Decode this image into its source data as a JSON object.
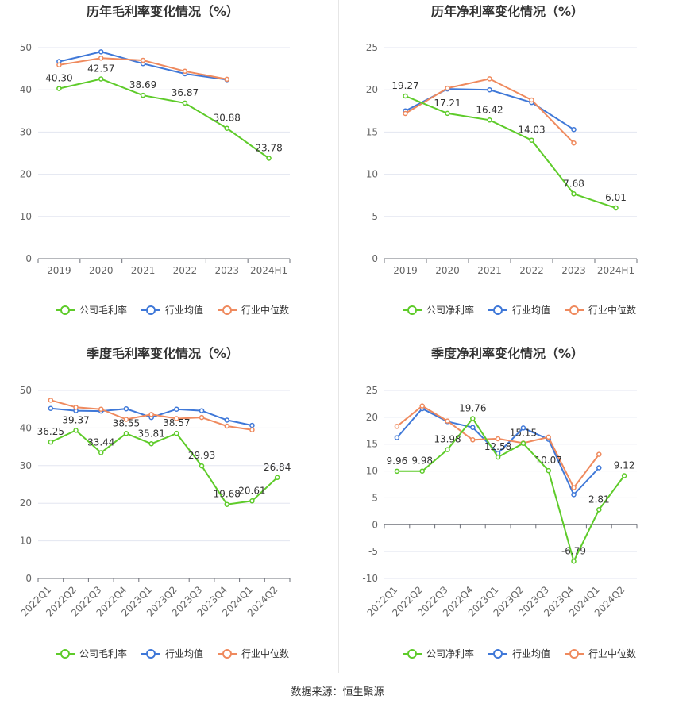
{
  "colors": {
    "company": "#5ecb2a",
    "industry_avg": "#3f78d8",
    "industry_median": "#ef8a5e",
    "axis_text": "#666666",
    "title": "#333333",
    "grid": "#e3e6f0"
  },
  "source": "数据来源：恒生聚源",
  "chart_data": [
    {
      "type": "line",
      "title": "历年毛利率变化情况（%）",
      "categories": [
        "2019",
        "2020",
        "2021",
        "2022",
        "2023",
        "2024H1"
      ],
      "ylim": [
        0,
        50
      ],
      "yticks": [
        0,
        10,
        20,
        30,
        40,
        50
      ],
      "tick_labels_rotated": false,
      "legend_position": "bottom",
      "series": [
        {
          "name": "公司毛利率",
          "key": "company",
          "labeled": true,
          "values": [
            40.3,
            42.57,
            38.69,
            36.87,
            30.88,
            23.78
          ],
          "labels": [
            "40.30",
            "42.57",
            "38.69",
            "36.87",
            "30.88",
            "23.78"
          ]
        },
        {
          "name": "行业均值",
          "key": "industry_avg",
          "labeled": false,
          "values": [
            46.7,
            49.0,
            46.2,
            43.8,
            42.4,
            null
          ]
        },
        {
          "name": "行业中位数",
          "key": "industry_median",
          "labeled": false,
          "values": [
            45.9,
            47.5,
            47.0,
            44.4,
            42.5,
            null
          ]
        }
      ]
    },
    {
      "type": "line",
      "title": "历年净利率变化情况（%）",
      "categories": [
        "2019",
        "2020",
        "2021",
        "2022",
        "2023",
        "2024H1"
      ],
      "ylim": [
        0,
        25
      ],
      "yticks": [
        0,
        5,
        10,
        15,
        20,
        25
      ],
      "tick_labels_rotated": false,
      "legend_position": "bottom",
      "series": [
        {
          "name": "公司净利率",
          "key": "company",
          "labeled": true,
          "values": [
            19.27,
            17.21,
            16.42,
            14.03,
            7.68,
            6.01
          ],
          "labels": [
            "19.27",
            "17.21",
            "16.42",
            "14.03",
            "7.68",
            "6.01"
          ]
        },
        {
          "name": "行业均值",
          "key": "industry_avg",
          "labeled": false,
          "values": [
            17.5,
            20.1,
            20.0,
            18.5,
            15.3,
            null
          ]
        },
        {
          "name": "行业中位数",
          "key": "industry_median",
          "labeled": false,
          "values": [
            17.2,
            20.2,
            21.3,
            18.8,
            13.7,
            null
          ]
        }
      ]
    },
    {
      "type": "line",
      "title": "季度毛利率变化情况（%）",
      "categories": [
        "2022Q1",
        "2022Q2",
        "2022Q3",
        "2022Q4",
        "2023Q1",
        "2023Q2",
        "2023Q3",
        "2023Q4",
        "2024Q1",
        "2024Q2"
      ],
      "ylim": [
        0,
        50
      ],
      "yticks": [
        0,
        10,
        20,
        30,
        40,
        50
      ],
      "tick_labels_rotated": true,
      "legend_position": "bottom",
      "series": [
        {
          "name": "公司毛利率",
          "key": "company",
          "labeled": true,
          "values": [
            36.25,
            39.37,
            33.44,
            38.55,
            35.81,
            38.57,
            29.93,
            19.68,
            20.61,
            26.84
          ],
          "labels": [
            "36.25",
            "39.37",
            "33.44",
            "38.55",
            "35.81",
            "38.57",
            "29.93",
            "19.68",
            "20.61",
            "26.84"
          ]
        },
        {
          "name": "行业均值",
          "key": "industry_avg",
          "labeled": false,
          "values": [
            45.2,
            44.6,
            44.5,
            45.1,
            42.8,
            45.0,
            44.6,
            42.1,
            40.7,
            null
          ]
        },
        {
          "name": "行业中位数",
          "key": "industry_median",
          "labeled": false,
          "values": [
            47.4,
            45.5,
            45.0,
            42.3,
            43.6,
            42.5,
            42.8,
            40.5,
            39.5,
            null
          ]
        }
      ]
    },
    {
      "type": "line",
      "title": "季度净利率变化情况（%）",
      "categories": [
        "2022Q1",
        "2022Q2",
        "2022Q3",
        "2022Q4",
        "2023Q1",
        "2023Q2",
        "2023Q3",
        "2023Q4",
        "2024Q1",
        "2024Q2"
      ],
      "ylim": [
        -10,
        25
      ],
      "yticks": [
        -10,
        -5,
        0,
        5,
        10,
        15,
        20,
        25
      ],
      "tick_labels_rotated": true,
      "legend_position": "bottom",
      "series": [
        {
          "name": "公司净利率",
          "key": "company",
          "labeled": true,
          "values": [
            9.96,
            9.98,
            13.98,
            19.76,
            12.58,
            15.15,
            10.07,
            -6.79,
            2.81,
            9.12
          ],
          "labels": [
            "9.96",
            "9.98",
            "13.98",
            "19.76",
            "12.58",
            "15.15",
            "10.07",
            "-6.79",
            "2.81",
            "9.12"
          ]
        },
        {
          "name": "行业均值",
          "key": "industry_avg",
          "labeled": false,
          "values": [
            16.2,
            21.6,
            19.2,
            18.1,
            13.3,
            18.0,
            15.9,
            5.6,
            10.6,
            null
          ]
        },
        {
          "name": "行业中位数",
          "key": "industry_median",
          "labeled": false,
          "values": [
            18.3,
            22.1,
            19.3,
            15.8,
            16.0,
            15.2,
            16.3,
            6.9,
            13.1,
            null
          ]
        }
      ]
    }
  ]
}
